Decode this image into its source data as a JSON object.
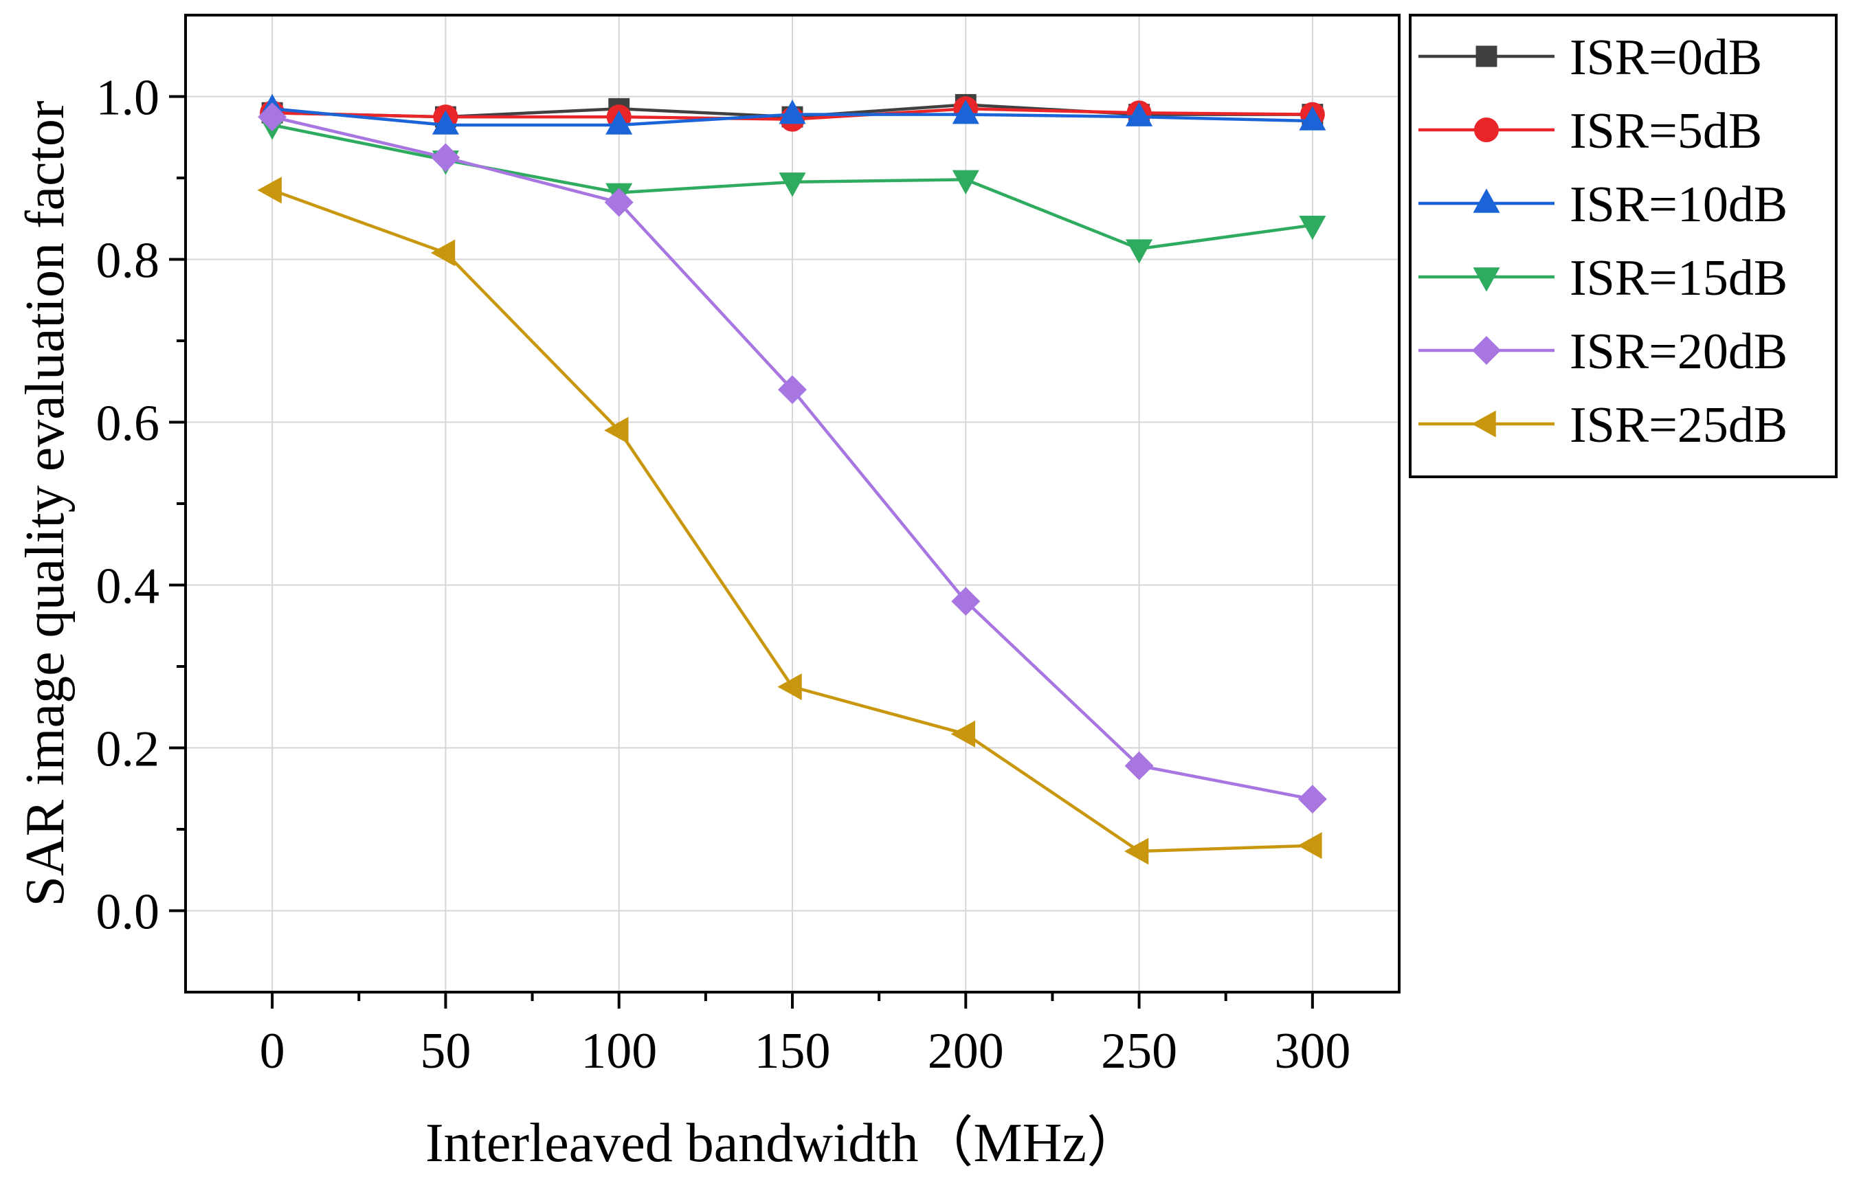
{
  "chart_data": {
    "type": "line",
    "xlabel": "Interleaved bandwidth（MHz）",
    "ylabel": "SAR image quality evaluation factor",
    "x": [
      0,
      50,
      100,
      150,
      200,
      250,
      300
    ],
    "xlim": [
      -25,
      325
    ],
    "ylim": [
      -0.1,
      1.1
    ],
    "xticks": [
      0,
      50,
      100,
      150,
      200,
      250,
      300
    ],
    "yticks": [
      0.0,
      0.2,
      0.4,
      0.6,
      0.8,
      1.0
    ],
    "xtick_labels": [
      "0",
      "50",
      "100",
      "150",
      "200",
      "250",
      "300"
    ],
    "ytick_labels": [
      "0.0",
      "0.2",
      "0.4",
      "0.6",
      "0.8",
      "1.0"
    ],
    "grid": true,
    "legend_position": "outside-right-top",
    "series": [
      {
        "name": "ISR=0dB",
        "color": "#404040",
        "marker": "square",
        "values": [
          0.98,
          0.975,
          0.985,
          0.975,
          0.99,
          0.978,
          0.978
        ]
      },
      {
        "name": "ISR=5dB",
        "color": "#e8262a",
        "marker": "circle",
        "values": [
          0.98,
          0.975,
          0.975,
          0.972,
          0.985,
          0.98,
          0.978
        ]
      },
      {
        "name": "ISR=10dB",
        "color": "#1a64d8",
        "marker": "triangle-up",
        "values": [
          0.985,
          0.965,
          0.965,
          0.978,
          0.978,
          0.975,
          0.97
        ]
      },
      {
        "name": "ISR=15dB",
        "color": "#2eab5f",
        "marker": "triangle-down",
        "values": [
          0.965,
          0.922,
          0.882,
          0.895,
          0.898,
          0.813,
          0.842
        ]
      },
      {
        "name": "ISR=20dB",
        "color": "#a876e0",
        "marker": "diamond",
        "values": [
          0.975,
          0.925,
          0.87,
          0.64,
          0.38,
          0.178,
          0.137
        ]
      },
      {
        "name": "ISR=25dB",
        "color": "#c9970e",
        "marker": "triangle-left",
        "values": [
          0.885,
          0.808,
          0.59,
          0.275,
          0.217,
          0.073,
          0.08
        ]
      }
    ]
  }
}
